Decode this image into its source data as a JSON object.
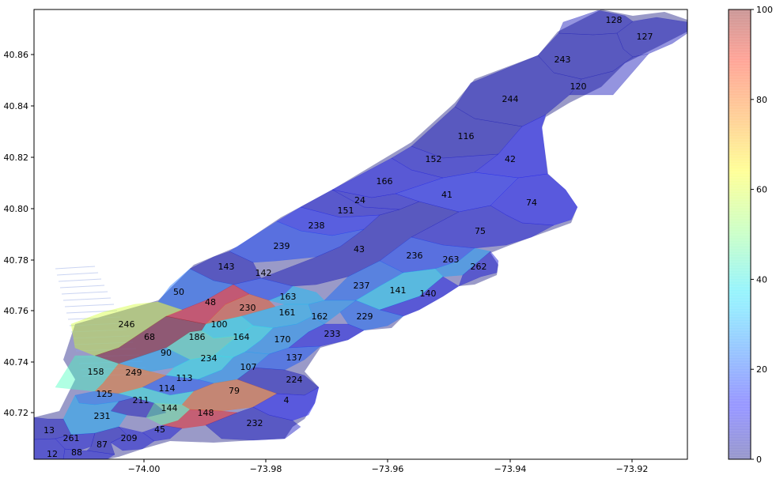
{
  "map": {
    "x_ticks": [
      "−74.00",
      "−73.98",
      "−73.96",
      "−73.94",
      "−73.92"
    ],
    "y_ticks": [
      "40.72",
      "40.74",
      "40.76",
      "40.78",
      "40.80",
      "40.82",
      "40.84",
      "40.86"
    ],
    "colorbar": {
      "colormap": "jet",
      "alpha": 0.4,
      "ticks": [
        "0",
        "20",
        "40",
        "60",
        "80",
        "100"
      ]
    },
    "zones": [
      {
        "id": "128",
        "value": 5
      },
      {
        "id": "127",
        "value": 5
      },
      {
        "id": "243",
        "value": 5
      },
      {
        "id": "120",
        "value": 5
      },
      {
        "id": "244",
        "value": 5
      },
      {
        "id": "116",
        "value": 5
      },
      {
        "id": "42",
        "value": 12
      },
      {
        "id": "152",
        "value": 8
      },
      {
        "id": "166",
        "value": 10
      },
      {
        "id": "41",
        "value": 14
      },
      {
        "id": "74",
        "value": 12
      },
      {
        "id": "24",
        "value": 8
      },
      {
        "id": "151",
        "value": 8
      },
      {
        "id": "238",
        "value": 14
      },
      {
        "id": "75",
        "value": 8
      },
      {
        "id": "239",
        "value": 18
      },
      {
        "id": "43",
        "value": 5
      },
      {
        "id": "236",
        "value": 18
      },
      {
        "id": "263",
        "value": 28
      },
      {
        "id": "262",
        "value": 8
      },
      {
        "id": "143",
        "value": 5
      },
      {
        "id": "142",
        "value": 18
      },
      {
        "id": "237",
        "value": 22
      },
      {
        "id": "141",
        "value": 35
      },
      {
        "id": "140",
        "value": 10
      },
      {
        "id": "50",
        "value": 22
      },
      {
        "id": "48",
        "value": 88
      },
      {
        "id": "230",
        "value": 80
      },
      {
        "id": "163",
        "value": 32
      },
      {
        "id": "161",
        "value": 32
      },
      {
        "id": "162",
        "value": 28
      },
      {
        "id": "229",
        "value": 22
      },
      {
        "id": "246",
        "value": 58
      },
      {
        "id": "100",
        "value": 38
      },
      {
        "id": "186",
        "value": 44
      },
      {
        "id": "164",
        "value": 38
      },
      {
        "id": "170",
        "value": 28
      },
      {
        "id": "233",
        "value": 10
      },
      {
        "id": "68",
        "value": 100
      },
      {
        "id": "90",
        "value": 30
      },
      {
        "id": "234",
        "value": 38
      },
      {
        "id": "137",
        "value": 20
      },
      {
        "id": "107",
        "value": 28
      },
      {
        "id": "158",
        "value": 44
      },
      {
        "id": "249",
        "value": 76
      },
      {
        "id": "113",
        "value": 20
      },
      {
        "id": "224",
        "value": 5
      },
      {
        "id": "114",
        "value": 40
      },
      {
        "id": "79",
        "value": 77
      },
      {
        "id": "125",
        "value": 24
      },
      {
        "id": "211",
        "value": 5
      },
      {
        "id": "4",
        "value": 12
      },
      {
        "id": "144",
        "value": 48
      },
      {
        "id": "231",
        "value": 30
      },
      {
        "id": "148",
        "value": 86
      },
      {
        "id": "232",
        "value": 6
      },
      {
        "id": "45",
        "value": 8
      },
      {
        "id": "13",
        "value": 6
      },
      {
        "id": "261",
        "value": 8
      },
      {
        "id": "209",
        "value": 8
      },
      {
        "id": "87",
        "value": 6
      },
      {
        "id": "12",
        "value": 8
      },
      {
        "id": "88",
        "value": 8
      }
    ]
  }
}
